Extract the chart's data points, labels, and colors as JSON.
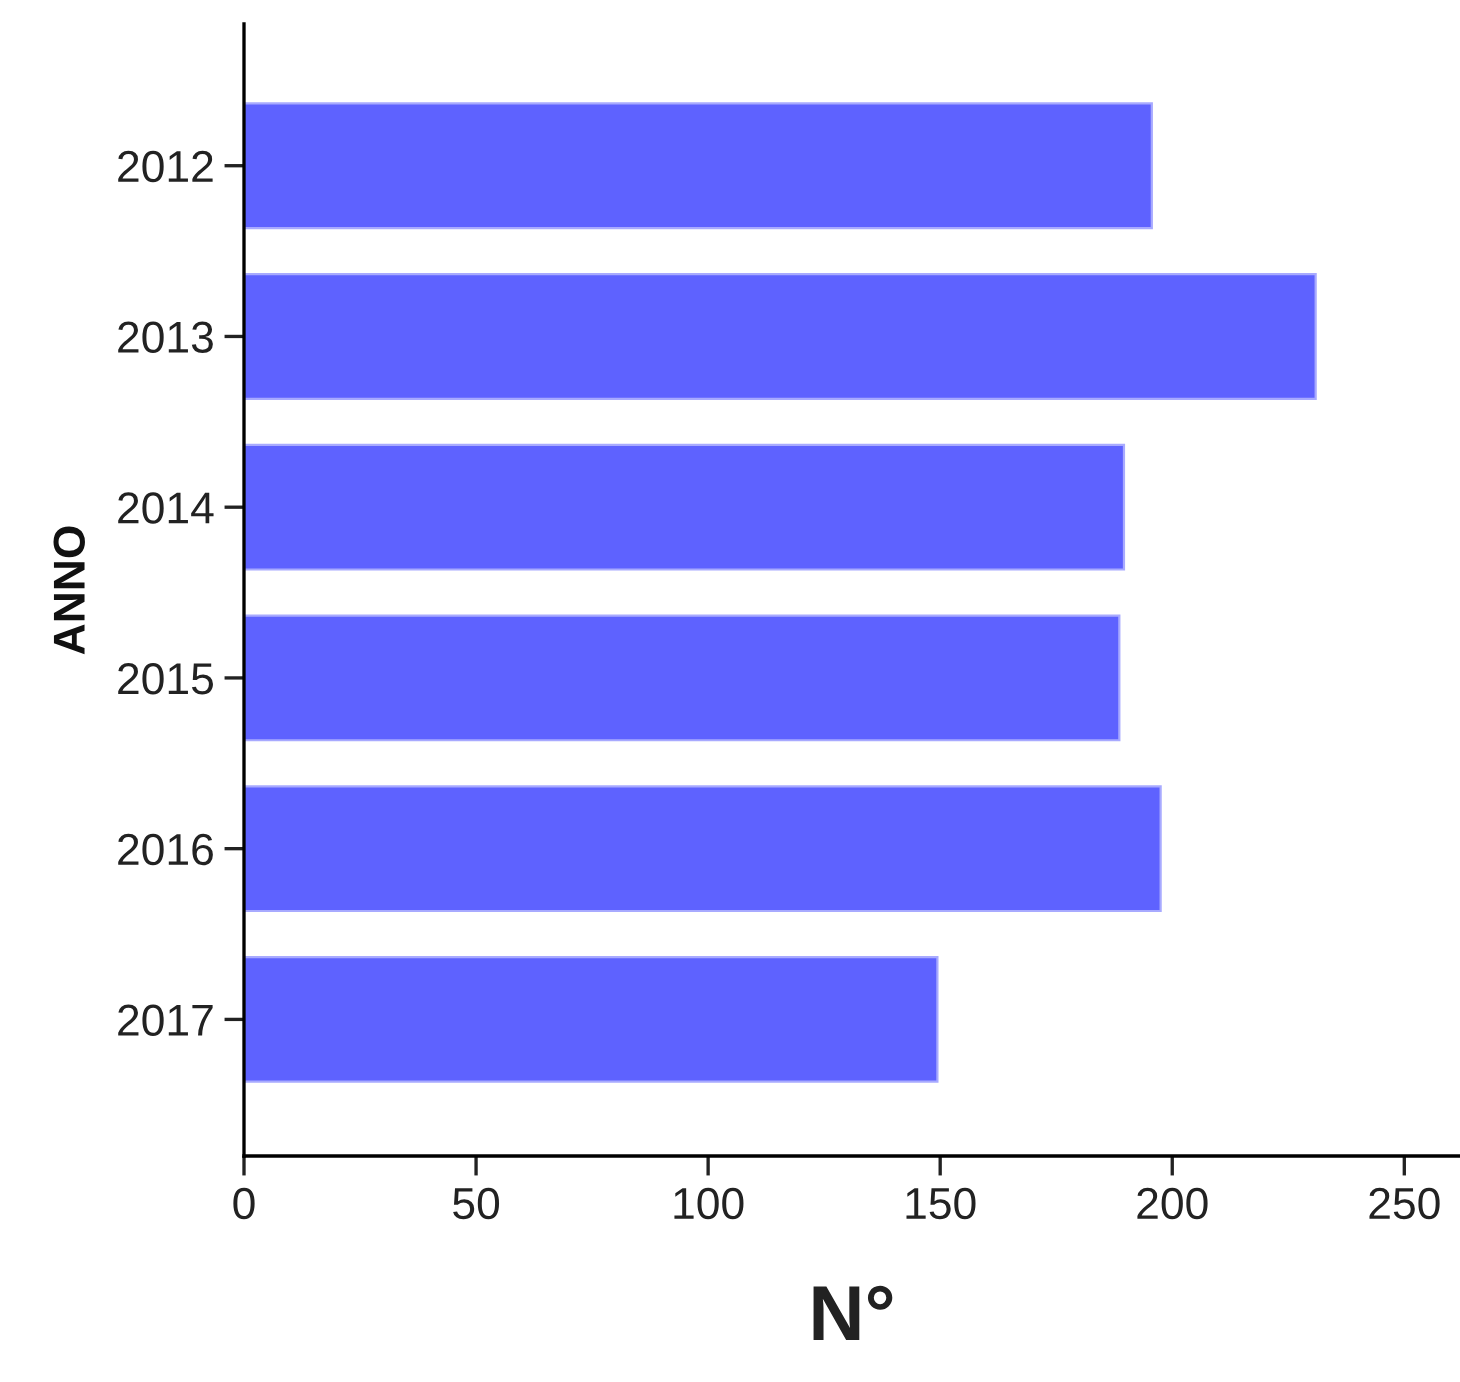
{
  "chart_data": {
    "type": "bar",
    "orientation": "horizontal",
    "xlabel": "N°",
    "ylabel": "ANNO",
    "categories": [
      "2012",
      "2013",
      "2014",
      "2015",
      "2016",
      "2017"
    ],
    "values": [
      195.6,
      230.9,
      189.6,
      188.6,
      197.5,
      149.4
    ],
    "color": "#5e62ff",
    "xlim": [
      0,
      262
    ],
    "xticks": [
      0,
      50,
      100,
      150,
      200,
      250
    ],
    "grid": false,
    "legend": false
  }
}
